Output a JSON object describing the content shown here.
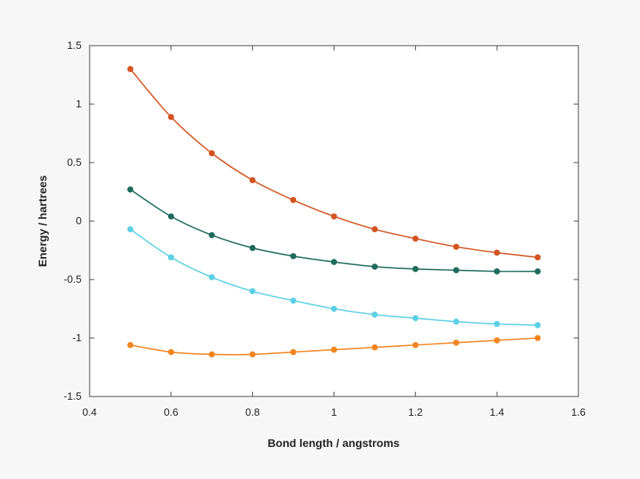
{
  "chart_data": {
    "type": "line",
    "title": "",
    "xlabel": "Bond length / angstroms",
    "ylabel": "Energy / hartrees",
    "xlim": [
      0.4,
      1.6
    ],
    "ylim": [
      -1.5,
      1.5
    ],
    "xticks": [
      0.4,
      0.6,
      0.8,
      1.0,
      1.2,
      1.4,
      1.6
    ],
    "yticks": [
      -1.5,
      -1.0,
      -0.5,
      0.0,
      0.5,
      1.0,
      1.5
    ],
    "xtick_labels": [
      "0.4",
      "0.6",
      "0.8",
      "1",
      "1.2",
      "1.4",
      "1.6"
    ],
    "ytick_labels": [
      "-1.5",
      "-1",
      "-0.5",
      "0",
      "0.5",
      "1",
      "1.5"
    ],
    "grid": false,
    "legend": "none",
    "x": [
      0.5,
      0.6,
      0.7,
      0.8,
      0.9,
      1.0,
      1.1,
      1.2,
      1.3,
      1.4,
      1.5
    ],
    "series": [
      {
        "color": "#d35420",
        "values": [
          1.3,
          0.89,
          0.58,
          0.35,
          0.18,
          0.04,
          -0.07,
          -0.15,
          -0.22,
          -0.27,
          -0.31
        ]
      },
      {
        "color": "#1f6b5e",
        "values": [
          0.27,
          0.04,
          -0.12,
          -0.23,
          -0.3,
          -0.35,
          -0.39,
          -0.41,
          -0.42,
          -0.43,
          -0.43
        ]
      },
      {
        "color": "#5ccfe6",
        "values": [
          -0.07,
          -0.31,
          -0.48,
          -0.6,
          -0.68,
          -0.75,
          -0.8,
          -0.83,
          -0.86,
          -0.88,
          -0.89
        ]
      },
      {
        "color": "#f2851f",
        "values": [
          -1.06,
          -1.12,
          -1.14,
          -1.14,
          -1.12,
          -1.1,
          -1.08,
          -1.06,
          -1.04,
          -1.02,
          -1.0
        ]
      }
    ]
  }
}
